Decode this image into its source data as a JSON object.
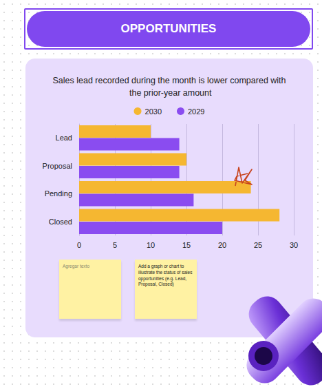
{
  "header": "OPPORTUNITIES",
  "notes": [
    "Agregar texto",
    "Add a graph or chart to illustrate the status of sales opportunities (e.g. Lead, Proposal, Closed)"
  ],
  "chart_data": {
    "type": "bar",
    "title": "Sales lead recorded during the month is lower compared with the prior-year amount",
    "orientation": "horizontal",
    "categories": [
      "Lead",
      "Proposal",
      "Pending",
      "Closed"
    ],
    "series": [
      {
        "name": "2030",
        "color": "#f5b731",
        "values": [
          10,
          15,
          24,
          28
        ]
      },
      {
        "name": "2029",
        "color": "#8a4cf0",
        "values": [
          14,
          14,
          16,
          20
        ]
      }
    ],
    "xlim": [
      0,
      30
    ],
    "xticks": [
      0,
      5,
      10,
      15,
      20,
      25,
      30
    ],
    "grid": true,
    "legend": "top"
  }
}
